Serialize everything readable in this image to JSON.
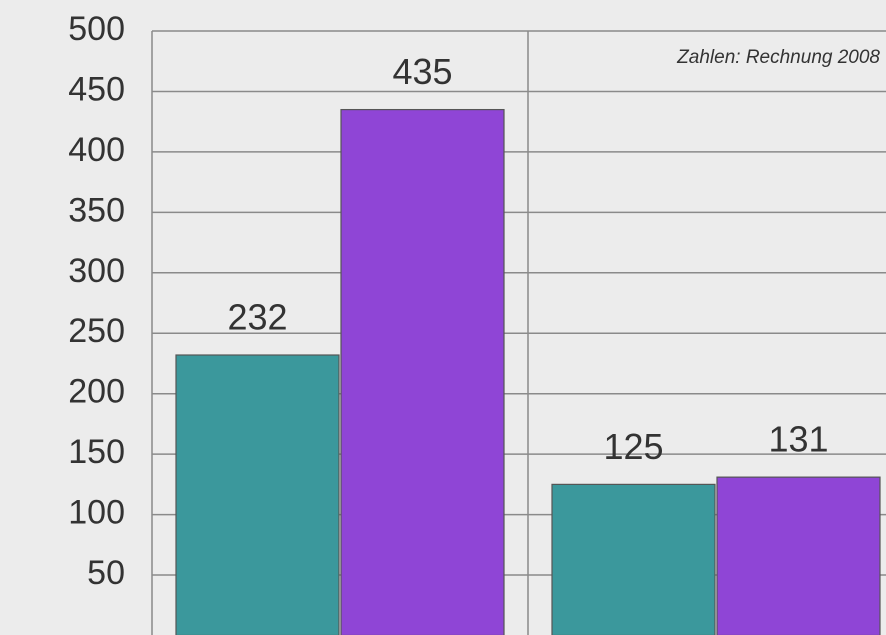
{
  "chart_data": {
    "type": "bar",
    "annotation": "Zahlen: Rechnung 2008",
    "categories": [
      null,
      null
    ],
    "series": [
      {
        "color": "#3b989c",
        "values": [
          232,
          125
        ]
      },
      {
        "color": "#8f45d6",
        "values": [
          435,
          131
        ]
      }
    ],
    "ylim": [
      0,
      500
    ],
    "yticks": [
      50,
      100,
      150,
      200,
      250,
      300,
      350,
      400,
      450,
      500
    ],
    "grid": true
  }
}
